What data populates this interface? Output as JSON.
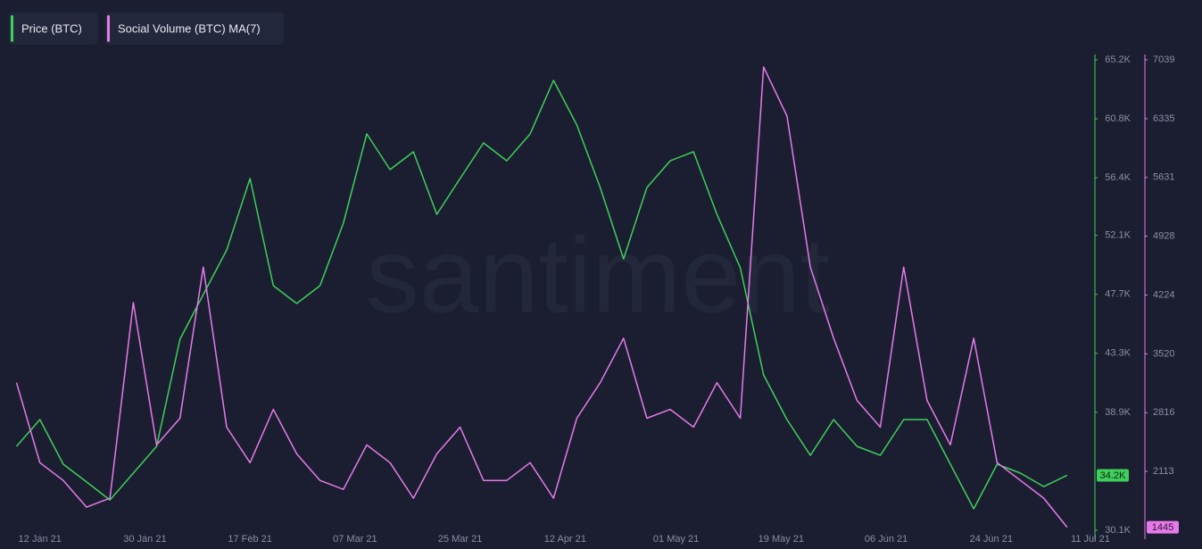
{
  "chart_data": {
    "type": "line",
    "legend": "top-left",
    "watermark": "santiment",
    "x": [
      "2021-01-08",
      "2021-01-12",
      "2021-01-16",
      "2021-01-20",
      "2021-01-24",
      "2021-01-28",
      "2021-02-01",
      "2021-02-05",
      "2021-02-09",
      "2021-02-13",
      "2021-02-17",
      "2021-02-21",
      "2021-02-25",
      "2021-03-01",
      "2021-03-05",
      "2021-03-09",
      "2021-03-13",
      "2021-03-17",
      "2021-03-21",
      "2021-03-25",
      "2021-03-29",
      "2021-04-02",
      "2021-04-06",
      "2021-04-10",
      "2021-04-14",
      "2021-04-18",
      "2021-04-22",
      "2021-04-26",
      "2021-04-30",
      "2021-05-04",
      "2021-05-08",
      "2021-05-12",
      "2021-05-16",
      "2021-05-20",
      "2021-05-24",
      "2021-05-28",
      "2021-06-01",
      "2021-06-05",
      "2021-06-09",
      "2021-06-13",
      "2021-06-17",
      "2021-06-21",
      "2021-06-25",
      "2021-06-29",
      "2021-07-03",
      "2021-07-07"
    ],
    "xlim": [
      "2021-01-07",
      "2021-07-11"
    ],
    "xticks": [
      {
        "value": "2021-01-12",
        "label": "12 Jan 21"
      },
      {
        "value": "2021-01-30",
        "label": "30 Jan 21"
      },
      {
        "value": "2021-02-17",
        "label": "17 Feb 21"
      },
      {
        "value": "2021-03-07",
        "label": "07 Mar 21"
      },
      {
        "value": "2021-03-25",
        "label": "25 Mar 21"
      },
      {
        "value": "2021-04-12",
        "label": "12 Apr 21"
      },
      {
        "value": "2021-05-01",
        "label": "01 May 21"
      },
      {
        "value": "2021-05-19",
        "label": "19 May 21"
      },
      {
        "value": "2021-06-06",
        "label": "06 Jun 21"
      },
      {
        "value": "2021-06-24",
        "label": "24 Jun 21"
      },
      {
        "value": "2021-07-11",
        "label": "11 Jul 21"
      }
    ],
    "ylim": [
      30100,
      65200
    ],
    "yticks": [
      {
        "value": 30100,
        "label": "30.1K"
      },
      {
        "value": 38900,
        "label": "38.9K"
      },
      {
        "value": 43300,
        "label": "43.3K"
      },
      {
        "value": 47700,
        "label": "47.7K"
      },
      {
        "value": 52100,
        "label": "52.1K"
      },
      {
        "value": 56400,
        "label": "56.4K"
      },
      {
        "value": 60800,
        "label": "60.8K"
      },
      {
        "value": 65200,
        "label": "65.2K"
      }
    ],
    "y2lim": [
      1409,
      7039
    ],
    "y2ticks": [
      2113,
      2816,
      3520,
      4224,
      4928,
      5631,
      6335,
      7039
    ],
    "series": [
      {
        "name": "Price (BTC)",
        "color": "#3fcf5a",
        "values": [
          36360,
          38360,
          35030,
          33700,
          32360,
          34360,
          36360,
          44350,
          47680,
          51010,
          56340,
          48350,
          47020,
          48350,
          53010,
          59670,
          57010,
          58340,
          53670,
          56340,
          59000,
          57670,
          59670,
          63670,
          60340,
          55670,
          50350,
          55670,
          57670,
          58340,
          53670,
          49680,
          41690,
          38360,
          35690,
          38360,
          36360,
          35690,
          38360,
          38360,
          35030,
          31700,
          35030,
          34360,
          33360,
          34200
        ],
        "value_labels": [
          null,
          null,
          null,
          null,
          null,
          null,
          null,
          null,
          null,
          null,
          null,
          null,
          null,
          null,
          null,
          null,
          null,
          null,
          null,
          null,
          null,
          null,
          null,
          null,
          null,
          null,
          null,
          null,
          null,
          null,
          null,
          null,
          null,
          null,
          null,
          null,
          null,
          null,
          null,
          null,
          null,
          null,
          null,
          null,
          null,
          "34.2K"
        ]
      },
      {
        "name": "Social Volume (BTC) MA(7)",
        "color": "#e57be8",
        "axis": "y2",
        "values": [
          3175,
          2218,
          2005,
          1686,
          1792,
          4133,
          2430,
          2750,
          4558,
          2643,
          2218,
          2856,
          2324,
          2005,
          1898,
          2430,
          2218,
          1792,
          2324,
          2643,
          2005,
          2005,
          2218,
          1792,
          2750,
          3175,
          3707,
          2750,
          2856,
          2643,
          3175,
          2750,
          6952,
          6367,
          4558,
          3707,
          2962,
          2643,
          4558,
          2962,
          2430,
          3707,
          2218,
          2005,
          1792,
          1445
        ],
        "value_labels": [
          null,
          null,
          null,
          null,
          null,
          null,
          null,
          null,
          null,
          null,
          null,
          null,
          null,
          null,
          null,
          null,
          null,
          null,
          null,
          null,
          null,
          null,
          null,
          null,
          null,
          null,
          null,
          null,
          null,
          null,
          null,
          null,
          null,
          null,
          null,
          null,
          null,
          null,
          null,
          null,
          null,
          null,
          null,
          null,
          null,
          "1445"
        ]
      }
    ]
  }
}
